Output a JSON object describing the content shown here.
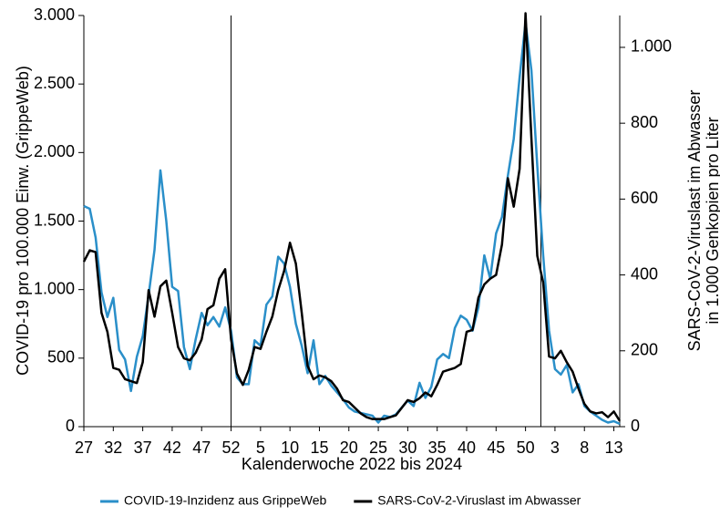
{
  "chart_data": {
    "type": "line",
    "ylabel": "COVID-19 pro 100.000 Einw. (GrippeWeb)",
    "y2label": [
      "SARS-CoV-2-Viruslast im Abwasser",
      "in 1.000 Genkopien pro Liter"
    ],
    "xlabel": "Kalenderwoche 2022 bis 2024",
    "categories": [
      "27",
      null,
      null,
      null,
      null,
      "32",
      null,
      null,
      null,
      null,
      "37",
      null,
      null,
      null,
      null,
      "42",
      null,
      null,
      null,
      null,
      "47",
      null,
      null,
      null,
      null,
      "52",
      null,
      null,
      null,
      null,
      "5",
      null,
      null,
      null,
      null,
      "10",
      null,
      null,
      null,
      null,
      "15",
      null,
      null,
      null,
      null,
      "20",
      null,
      null,
      null,
      null,
      "25",
      null,
      null,
      null,
      null,
      "30",
      null,
      null,
      null,
      null,
      "35",
      null,
      null,
      null,
      null,
      "40",
      null,
      null,
      null,
      null,
      "45",
      null,
      null,
      null,
      null,
      "50",
      null,
      null,
      null,
      null,
      "3",
      null,
      null,
      null,
      null,
      "8",
      null,
      null,
      null,
      null,
      "13",
      null
    ],
    "ylim": [
      0,
      3000
    ],
    "yticks": [
      0,
      500,
      {
        "value": 1000,
        "label": "1.000"
      },
      {
        "value": 1500,
        "label": "1.500"
      },
      {
        "value": 2000,
        "label": "2.000"
      },
      {
        "value": 2500,
        "label": "2.500"
      },
      {
        "value": 3000,
        "label": "3.000"
      }
    ],
    "y2lim": [
      0,
      1084
    ],
    "y2ticks": [
      0,
      200,
      400,
      600,
      800,
      {
        "value": 1000,
        "label": "1.000"
      }
    ],
    "series": [
      {
        "name": "COVID-19-Inzidenz aus GrippeWeb",
        "color": "#2a8fc9",
        "values": [
          1610,
          1590,
          1380,
          980,
          800,
          940,
          560,
          490,
          260,
          510,
          660,
          960,
          1290,
          1870,
          1500,
          1020,
          990,
          580,
          420,
          640,
          830,
          740,
          800,
          730,
          870,
          700,
          360,
          310,
          310,
          630,
          590,
          890,
          950,
          1240,
          1190,
          1020,
          750,
          590,
          390,
          630,
          310,
          370,
          300,
          250,
          200,
          140,
          110,
          100,
          90,
          80,
          30,
          80,
          70,
          90,
          140,
          190,
          150,
          320,
          210,
          290,
          490,
          530,
          500,
          720,
          810,
          780,
          700,
          870,
          1250,
          1080,
          1410,
          1530,
          1830,
          2100,
          2550,
          2950,
          2600,
          1900,
          1250,
          700,
          420,
          380,
          450,
          250,
          310,
          150,
          110,
          80,
          50,
          30,
          40,
          20
        ]
      },
      {
        "name": "SARS-CoV-2-Viruslast im Abwasser",
        "color": "#000000",
        "axis": "y2",
        "values": [
          435,
          465,
          460,
          300,
          250,
          155,
          150,
          125,
          120,
          115,
          170,
          360,
          290,
          370,
          385,
          300,
          210,
          180,
          175,
          195,
          230,
          310,
          320,
          390,
          415,
          230,
          140,
          110,
          150,
          210,
          205,
          250,
          290,
          360,
          410,
          485,
          430,
          300,
          160,
          125,
          135,
          130,
          120,
          100,
          70,
          65,
          50,
          35,
          25,
          20,
          20,
          20,
          25,
          30,
          50,
          70,
          65,
          75,
          90,
          80,
          110,
          145,
          150,
          155,
          165,
          250,
          255,
          340,
          375,
          390,
          400,
          480,
          655,
          580,
          680,
          1090,
          760,
          450,
          380,
          185,
          180,
          200,
          170,
          145,
          100,
          60,
          40,
          35,
          38,
          25,
          40,
          15
        ]
      }
    ]
  }
}
